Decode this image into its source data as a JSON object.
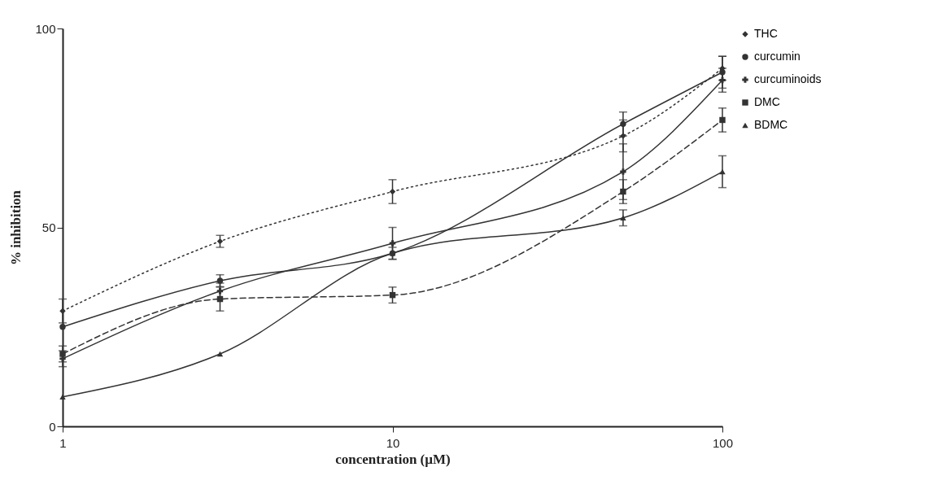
{
  "chart_data": {
    "type": "line",
    "xlabel": "concentration (µM)",
    "ylabel": "% inhibition",
    "log": "x",
    "xlim": [
      1,
      100
    ],
    "xticks": [
      1,
      10,
      100
    ],
    "ylim": [
      0,
      100
    ],
    "yticks": [
      0,
      50,
      100
    ],
    "grid": false,
    "legend": "right",
    "x": [
      1,
      3,
      10,
      50,
      100
    ],
    "series": [
      {
        "name": "THC",
        "color": "#333333",
        "marker": "diamond",
        "line_style": "dotted",
        "values": [
          29,
          46.5,
          59,
          73,
          90
        ],
        "errors": [
          3,
          1.5,
          3,
          4,
          3
        ]
      },
      {
        "name": "curcumin",
        "color": "#333333",
        "marker": "circle",
        "line_style": "solid",
        "values": [
          25,
          36.6,
          43.5,
          76,
          89
        ],
        "errors": [
          null,
          1.5,
          1.5,
          3,
          4
        ]
      },
      {
        "name": "curcuminoids",
        "color": "#333333",
        "marker": "cross",
        "line_style": "solid",
        "values": [
          17,
          34,
          46,
          64,
          87
        ],
        "errors": [
          2,
          2,
          4,
          7,
          3
        ]
      },
      {
        "name": "DMC",
        "color": "#333333",
        "marker": "square",
        "line_style": "dashed",
        "values": [
          18.2,
          32,
          33,
          59,
          77
        ],
        "errors": [
          2,
          3,
          2,
          3,
          3
        ]
      },
      {
        "name": "BDMC",
        "color": "#333333",
        "marker": "triangle",
        "line_style": "solid",
        "values": [
          7.4,
          18.2,
          43.5,
          52.4,
          64
        ],
        "errors": [
          null,
          null,
          null,
          2,
          4
        ]
      }
    ]
  }
}
